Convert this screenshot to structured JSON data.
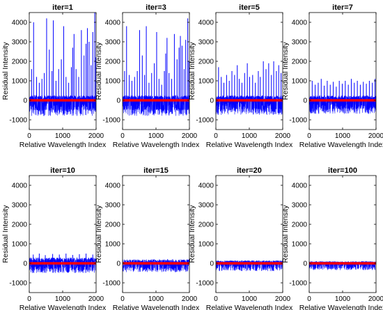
{
  "figure": {
    "x_label": "Relative Wavelength Index",
    "y_label": "Residual Intensity",
    "colors": {
      "residual": "#0000ff",
      "zero_line": "#ff0000",
      "axis": "#000000"
    }
  },
  "chart_data": [
    {
      "type": "line",
      "title": "iter=1",
      "xlabel": "Relative Wavelength Index",
      "ylabel": "Residual Intensity",
      "xlim": [
        0,
        2000
      ],
      "ylim": [
        -1500,
        4500
      ],
      "xticks": [
        0,
        1000,
        2000
      ],
      "yticks": [
        -1000,
        0,
        1000,
        2000,
        3000,
        4000
      ],
      "noise_band": [
        -800,
        250
      ],
      "spikes": [
        [
          70,
          1600
        ],
        [
          130,
          4000
        ],
        [
          220,
          1200
        ],
        [
          300,
          900
        ],
        [
          380,
          1100
        ],
        [
          450,
          1400
        ],
        [
          520,
          4200
        ],
        [
          600,
          2600
        ],
        [
          680,
          1500
        ],
        [
          720,
          4100
        ],
        [
          800,
          1000
        ],
        [
          880,
          1600
        ],
        [
          960,
          2100
        ],
        [
          1030,
          3800
        ],
        [
          1100,
          1200
        ],
        [
          1180,
          900
        ],
        [
          1260,
          1700
        ],
        [
          1300,
          2700
        ],
        [
          1340,
          3400
        ],
        [
          1400,
          1600
        ],
        [
          1480,
          1200
        ],
        [
          1560,
          3600
        ],
        [
          1640,
          2300
        ],
        [
          1700,
          2900
        ],
        [
          1740,
          3700
        ],
        [
          1790,
          3000
        ],
        [
          1850,
          1800
        ],
        [
          1900,
          3500
        ],
        [
          1960,
          4500
        ],
        [
          1990,
          2200
        ]
      ]
    },
    {
      "type": "line",
      "title": "iter=3",
      "xlabel": "Relative Wavelength Index",
      "ylabel": "Residual Intensity",
      "xlim": [
        0,
        2000
      ],
      "ylim": [
        -1500,
        4500
      ],
      "xticks": [
        0,
        1000,
        2000
      ],
      "yticks": [
        -1000,
        0,
        1000,
        2000,
        3000,
        4000
      ],
      "noise_band": [
        -800,
        250
      ],
      "spikes": [
        [
          60,
          1500
        ],
        [
          120,
          3800
        ],
        [
          200,
          1300
        ],
        [
          280,
          1000
        ],
        [
          360,
          1200
        ],
        [
          440,
          1500
        ],
        [
          510,
          3600
        ],
        [
          590,
          2300
        ],
        [
          660,
          1300
        ],
        [
          710,
          3800
        ],
        [
          790,
          900
        ],
        [
          870,
          1400
        ],
        [
          950,
          1900
        ],
        [
          1020,
          3500
        ],
        [
          1090,
          1100
        ],
        [
          1170,
          800
        ],
        [
          1250,
          1500
        ],
        [
          1290,
          2400
        ],
        [
          1330,
          3200
        ],
        [
          1390,
          1400
        ],
        [
          1470,
          1100
        ],
        [
          1550,
          3400
        ],
        [
          1630,
          2100
        ],
        [
          1690,
          2700
        ],
        [
          1730,
          3300
        ],
        [
          1780,
          2800
        ],
        [
          1840,
          1600
        ],
        [
          1890,
          3100
        ],
        [
          1950,
          4200
        ],
        [
          1985,
          2000
        ]
      ]
    },
    {
      "type": "line",
      "title": "iter=5",
      "xlabel": "Relative Wavelength Index",
      "ylabel": "Residual Intensity",
      "xlim": [
        0,
        2000
      ],
      "ylim": [
        -1500,
        4500
      ],
      "xticks": [
        0,
        1000,
        2000
      ],
      "yticks": [
        -1000,
        0,
        1000,
        2000,
        3000,
        4000
      ],
      "noise_band": [
        -750,
        250
      ],
      "spikes": [
        [
          80,
          1700
        ],
        [
          160,
          1200
        ],
        [
          240,
          900
        ],
        [
          320,
          1300
        ],
        [
          400,
          1000
        ],
        [
          480,
          1500
        ],
        [
          560,
          1300
        ],
        [
          640,
          1800
        ],
        [
          700,
          1100
        ],
        [
          780,
          900
        ],
        [
          860,
          1400
        ],
        [
          940,
          1900
        ],
        [
          1010,
          1200
        ],
        [
          1100,
          1300
        ],
        [
          1180,
          900
        ],
        [
          1270,
          1500
        ],
        [
          1330,
          1200
        ],
        [
          1420,
          2000
        ],
        [
          1500,
          1600
        ],
        [
          1580,
          1900
        ],
        [
          1660,
          1300
        ],
        [
          1730,
          2000
        ],
        [
          1810,
          1500
        ],
        [
          1880,
          1800
        ],
        [
          1950,
          1400
        ]
      ]
    },
    {
      "type": "line",
      "title": "iter=7",
      "xlabel": "Relative Wavelength Index",
      "ylabel": "Residual Intensity",
      "xlim": [
        0,
        2000
      ],
      "ylim": [
        -1500,
        4500
      ],
      "xticks": [
        0,
        1000,
        2000
      ],
      "yticks": [
        -1000,
        0,
        1000,
        2000,
        3000,
        4000
      ],
      "noise_band": [
        -700,
        250
      ],
      "spikes": [
        [
          90,
          1000
        ],
        [
          180,
          800
        ],
        [
          270,
          900
        ],
        [
          360,
          1100
        ],
        [
          450,
          750
        ],
        [
          540,
          1000
        ],
        [
          630,
          800
        ],
        [
          720,
          950
        ],
        [
          810,
          700
        ],
        [
          900,
          1000
        ],
        [
          990,
          850
        ],
        [
          1080,
          1000
        ],
        [
          1170,
          800
        ],
        [
          1260,
          1100
        ],
        [
          1350,
          900
        ],
        [
          1440,
          1000
        ],
        [
          1530,
          800
        ],
        [
          1620,
          950
        ],
        [
          1710,
          850
        ],
        [
          1800,
          1000
        ],
        [
          1890,
          900
        ],
        [
          1970,
          1100
        ]
      ]
    },
    {
      "type": "line",
      "title": "iter=10",
      "xlabel": "Relative Wavelength Index",
      "ylabel": "Residual Intensity",
      "xlim": [
        0,
        2000
      ],
      "ylim": [
        -1500,
        4500
      ],
      "xticks": [
        0,
        1000,
        2000
      ],
      "yticks": [
        -1000,
        0,
        1000,
        2000,
        3000,
        4000
      ],
      "noise_band": [
        -500,
        300
      ],
      "spikes": [
        [
          120,
          450
        ],
        [
          300,
          500
        ],
        [
          480,
          420
        ],
        [
          700,
          480
        ],
        [
          900,
          450
        ],
        [
          1100,
          500
        ],
        [
          1300,
          430
        ],
        [
          1500,
          470
        ],
        [
          1700,
          500
        ],
        [
          1900,
          450
        ]
      ]
    },
    {
      "type": "line",
      "title": "iter=15",
      "xlabel": "Relative Wavelength Index",
      "ylabel": "Residual Intensity",
      "xlim": [
        0,
        2000
      ],
      "ylim": [
        -1500,
        4500
      ],
      "xticks": [
        0,
        1000,
        2000
      ],
      "yticks": [
        -1000,
        0,
        1000,
        2000,
        3000,
        4000
      ],
      "noise_band": [
        -450,
        200
      ],
      "spikes": []
    },
    {
      "type": "line",
      "title": "iter=20",
      "xlabel": "Relative Wavelength Index",
      "ylabel": "Residual Intensity",
      "xlim": [
        0,
        2000
      ],
      "ylim": [
        -1500,
        4500
      ],
      "xticks": [
        0,
        1000,
        2000
      ],
      "yticks": [
        -1000,
        0,
        1000,
        2000,
        3000,
        4000
      ],
      "noise_band": [
        -400,
        150
      ],
      "spikes": []
    },
    {
      "type": "line",
      "title": "iter=100",
      "xlabel": "Relative Wavelength Index",
      "ylabel": "Residual Intensity",
      "xlim": [
        0,
        2000
      ],
      "ylim": [
        -1500,
        4500
      ],
      "xticks": [
        0,
        1000,
        2000
      ],
      "yticks": [
        -1000,
        0,
        1000,
        2000,
        3000,
        4000
      ],
      "noise_band": [
        -350,
        100
      ],
      "spikes": []
    }
  ]
}
